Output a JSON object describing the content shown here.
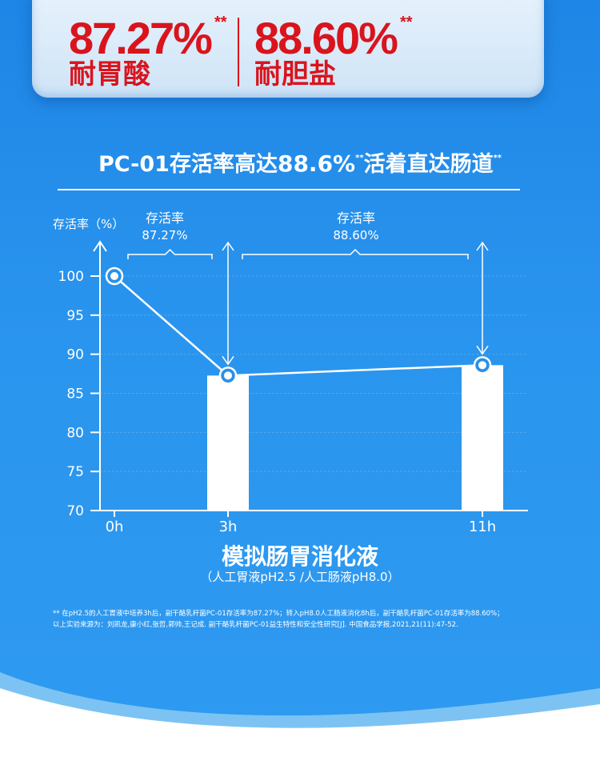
{
  "stats": [
    {
      "value": "87.27%",
      "stars": "**",
      "label": "耐胃酸"
    },
    {
      "value": "88.60%",
      "stars": "**",
      "label": "耐胆盐"
    }
  ],
  "headline": {
    "part1": "PC-01存活率高达",
    "pct": "88.6%",
    "sup1": "**",
    "part2": "活着直达肠道",
    "sup2": "**"
  },
  "chart_data": {
    "type": "bar",
    "ylabel": "存活率（%）",
    "ylim": [
      70,
      100
    ],
    "yticks": [
      70,
      75,
      80,
      85,
      90,
      95,
      100
    ],
    "x": [
      "0h",
      "3h",
      "11h"
    ],
    "bars": [
      {
        "x": "3h",
        "value": 87.27
      },
      {
        "x": "11h",
        "value": 88.6
      }
    ],
    "line": [
      {
        "x": "0h",
        "value": 100
      },
      {
        "x": "3h",
        "value": 87.27
      },
      {
        "x": "11h",
        "value": 88.6
      }
    ],
    "annotations": [
      {
        "text": "存活率",
        "value": "87.27%"
      },
      {
        "text": "存活率",
        "value": "88.60%"
      }
    ],
    "xlabel": "模拟肠胃消化液",
    "xsublabel": "（人工胃液pH2.5 /人工肠液pH8.0）"
  },
  "footnote": [
    "** 在pH2.5的人工胃液中培养3h后，副干酪乳杆菌PC-01存活率为87.27%；转入pH8.0人工肠液消化8h后，副干酪乳杆菌PC-01存活率为88.60%；",
    "以上实验来源为：刘凯龙,康小红,张哲,郭帅,王记成. 副干酪乳杆菌PC-01益生特性和安全性研究[J]. 中国食品学报,2021,21(11):47-52."
  ]
}
